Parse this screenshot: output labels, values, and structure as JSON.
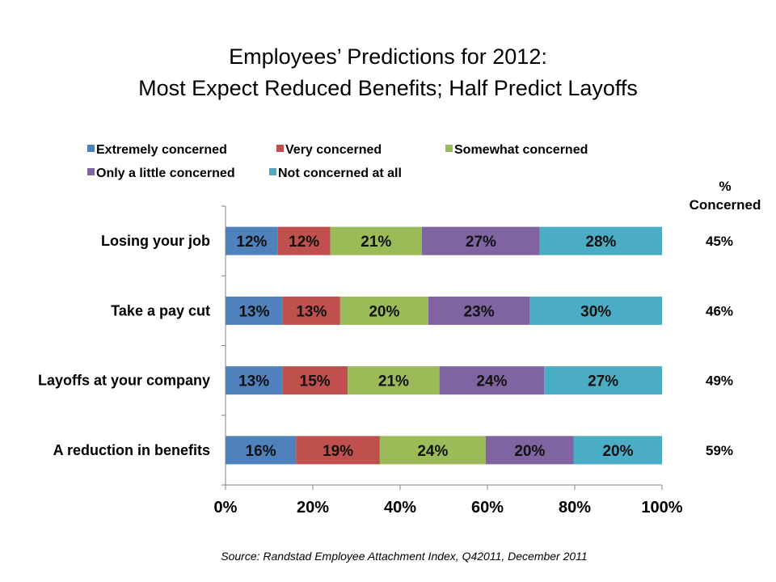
{
  "chart_data": {
    "type": "bar",
    "orientation": "horizontal",
    "stacked": "percent",
    "title": [
      "Employees’ Predictions for 2012:",
      "Most Expect Reduced Benefits; Half Predict Layoffs"
    ],
    "categories": [
      "Losing your job",
      "Take a pay cut",
      "Layoffs at your company",
      "A reduction in benefits"
    ],
    "series": [
      {
        "name": "Extremely concerned",
        "color": "#4F81BD",
        "values": [
          12,
          13,
          13,
          16
        ]
      },
      {
        "name": "Very concerned",
        "color": "#C0504D",
        "values": [
          12,
          13,
          15,
          19
        ]
      },
      {
        "name": "Somewhat concerned",
        "color": "#9BBB59",
        "values": [
          21,
          20,
          21,
          24
        ]
      },
      {
        "name": "Only a little concerned",
        "color": "#8064A2",
        "values": [
          27,
          23,
          24,
          20
        ]
      },
      {
        "name": "Not concerned at all",
        "color": "#4BACC6",
        "values": [
          28,
          30,
          27,
          20
        ]
      }
    ],
    "xlim": [
      0,
      100
    ],
    "xticks": [
      "0%",
      "20%",
      "40%",
      "60%",
      "80%",
      "100%"
    ],
    "legend_position": "top",
    "side_column": {
      "header": [
        "%",
        "Concerned"
      ],
      "values": [
        "45%",
        "46%",
        "49%",
        "59%"
      ]
    },
    "source": "Source: Randstad Employee Attachment Index, Q42011, December 2011",
    "grid": false
  }
}
